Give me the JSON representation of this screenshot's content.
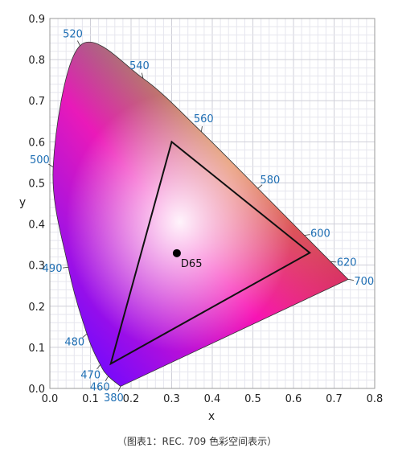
{
  "chart_data": {
    "type": "scatter",
    "xlabel": "x",
    "ylabel": "y",
    "xlim": [
      0,
      0.8
    ],
    "ylim": [
      0,
      0.9
    ],
    "x_ticks": [
      "0.0",
      "0.1",
      "0.2",
      "0.3",
      "0.4",
      "0.5",
      "0.6",
      "0.7",
      "0.8"
    ],
    "y_ticks": [
      "0.0",
      "0.1",
      "0.2",
      "0.3",
      "0.4",
      "0.5",
      "0.6",
      "0.7",
      "0.8",
      "0.9"
    ],
    "grid": true,
    "spectral_locus": {
      "label_color": "#1f6fb4",
      "points": [
        {
          "nm": 380,
          "x": 0.1741,
          "y": 0.005
        },
        {
          "nm": 460,
          "x": 0.144,
          "y": 0.0297
        },
        {
          "nm": 470,
          "x": 0.1241,
          "y": 0.0578
        },
        {
          "nm": 480,
          "x": 0.0913,
          "y": 0.1327
        },
        {
          "nm": 490,
          "x": 0.0454,
          "y": 0.295
        },
        {
          "nm": 500,
          "x": 0.0082,
          "y": 0.5384
        },
        {
          "nm": 520,
          "x": 0.0743,
          "y": 0.8338
        },
        {
          "nm": 540,
          "x": 0.2296,
          "y": 0.7543
        },
        {
          "nm": 560,
          "x": 0.3731,
          "y": 0.6245
        },
        {
          "nm": 580,
          "x": 0.5125,
          "y": 0.4866
        },
        {
          "nm": 600,
          "x": 0.627,
          "y": 0.3725
        },
        {
          "nm": 620,
          "x": 0.6915,
          "y": 0.3083
        },
        {
          "nm": 700,
          "x": 0.7347,
          "y": 0.2653
        }
      ],
      "labels": [
        "380",
        "460",
        "470",
        "480",
        "490",
        "500",
        "520",
        "540",
        "560",
        "580",
        "600",
        "620",
        "700"
      ]
    },
    "series": [
      {
        "name": "",
        "type": "triangle",
        "points": [
          {
            "x": 0.64,
            "y": 0.33
          },
          {
            "x": 0.3,
            "y": 0.6
          },
          {
            "x": 0.15,
            "y": 0.06
          }
        ]
      },
      {
        "name": "D65",
        "type": "point",
        "points": [
          {
            "x": 0.3127,
            "y": 0.329
          }
        ]
      }
    ]
  },
  "caption": "（图表1：REC. 709 色彩空间表示）"
}
